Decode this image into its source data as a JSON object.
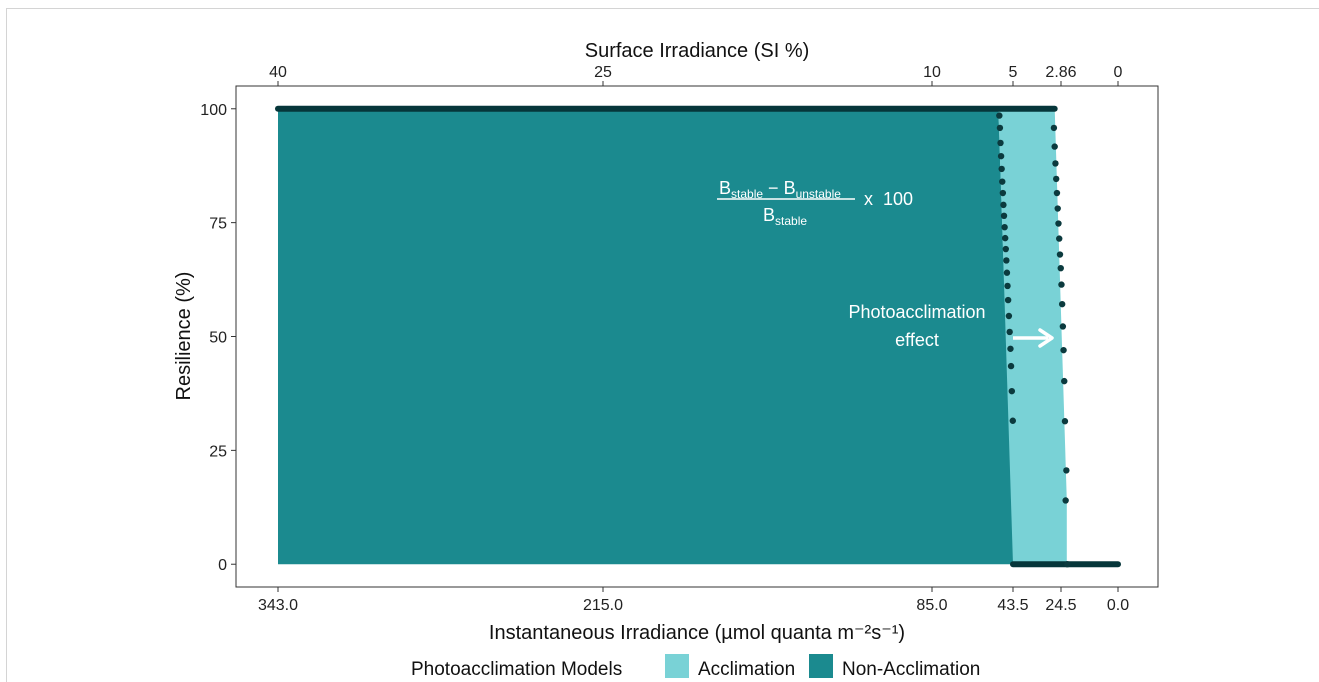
{
  "chart_data": {
    "type": "area",
    "xlabel_bottom": "Instantaneous Irradiance (µmol quanta m⁻²s⁻¹)",
    "xlabel_top": "Surface Irradiance (SI %)",
    "ylabel": "Resilience (%)",
    "y_ticks": [
      0,
      25,
      50,
      75,
      100
    ],
    "x_bottom_ticks": [
      "343.0",
      "215.0",
      "85.0",
      "43.5",
      "24.5",
      "0.0"
    ],
    "x_top_ticks": [
      "40",
      "25",
      "10",
      "5",
      "2.86",
      "0"
    ],
    "xlim": [
      360,
      -10
    ],
    "ylim": [
      -5,
      105
    ],
    "grid": false,
    "legend": {
      "title": "Photoacclimation Models",
      "position": "bottom",
      "entries": [
        {
          "name": "Acclimation",
          "color": "#79d2d6"
        },
        {
          "name": "Non-Acclimation",
          "color": "#1b8a8f"
        }
      ]
    },
    "series": [
      {
        "name": "Non-Acclimation",
        "color": "#1b8a8f",
        "x": [
          343.0,
          51.0,
          43.5,
          43.5
        ],
        "y": [
          100,
          100,
          5,
          0
        ]
      },
      {
        "name": "Acclimation",
        "color": "#79d2d6",
        "x": [
          51.0,
          27.0,
          22.0,
          22.0,
          43.5
        ],
        "y": [
          100,
          100,
          14,
          0,
          0
        ]
      }
    ],
    "threshold_points_nonacclimation": {
      "x": [
        50.5,
        50.2,
        49.9,
        49.6,
        49.3,
        49.0,
        48.7,
        48.4,
        48.1,
        47.8,
        47.5,
        47.2,
        46.9,
        46.6,
        46.3,
        46.0,
        45.6,
        45.2,
        44.8,
        44.5,
        44.1,
        43.6
      ],
      "y": [
        98.5,
        95.8,
        92.5,
        89.6,
        86.8,
        84.0,
        81.5,
        78.9,
        76.5,
        74.0,
        71.6,
        69.2,
        66.7,
        64.0,
        61.1,
        58.0,
        54.5,
        51.0,
        47.3,
        43.5,
        38.0,
        31.5
      ]
    },
    "threshold_points_acclimation": {
      "x": [
        27.3,
        27.0,
        26.7,
        26.4,
        26.1,
        25.8,
        25.5,
        25.2,
        24.9,
        24.6,
        24.3,
        24.0,
        23.7,
        23.4,
        23.1,
        22.8,
        22.5,
        22.2,
        21.8
      ],
      "y": [
        95.8,
        91.7,
        88.0,
        84.6,
        81.5,
        78.1,
        74.8,
        71.5,
        68.0,
        65.0,
        61.4,
        57.1,
        52.2,
        47.0,
        40.2,
        31.4,
        14.0,
        20.6,
        0
      ]
    },
    "lines": [
      {
        "x": [
          343.0,
          27.0
        ],
        "y": [
          100,
          100
        ],
        "color": "#06363a"
      },
      {
        "x": [
          43.5,
          0.0
        ],
        "y": [
          0,
          0
        ],
        "color": "#06363a"
      }
    ],
    "annotations": {
      "formula": {
        "numerator_b1": "B",
        "numerator_s1": "stable",
        "minus": " − ",
        "numerator_b2": "B",
        "numerator_s2": "unstable",
        "denominator_b": "B",
        "denominator_s": "stable",
        "times": "x  100"
      },
      "effect_line1": "Photoacclimation",
      "effect_line2": "effect"
    }
  }
}
